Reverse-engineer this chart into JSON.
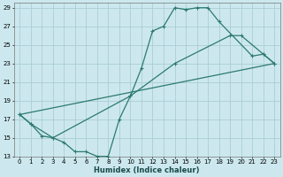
{
  "xlabel": "Humidex (Indice chaleur)",
  "bg_color": "#cce8ee",
  "grid_color": "#aacdd6",
  "line_color": "#2d7a6e",
  "xlim": [
    -0.5,
    23.5
  ],
  "ylim": [
    13,
    29.5
  ],
  "xticks": [
    0,
    1,
    2,
    3,
    4,
    5,
    6,
    7,
    8,
    9,
    10,
    11,
    12,
    13,
    14,
    15,
    16,
    17,
    18,
    19,
    20,
    21,
    22,
    23
  ],
  "yticks": [
    13,
    15,
    17,
    19,
    21,
    23,
    25,
    27,
    29
  ],
  "line1_x": [
    0,
    1,
    2,
    3,
    10,
    11,
    12,
    13,
    14,
    15,
    16,
    17,
    18,
    21,
    22,
    23
  ],
  "line1_y": [
    17.5,
    16.5,
    15.2,
    15.0,
    19.5,
    22.5,
    26.5,
    27.0,
    29.0,
    28.8,
    29.0,
    29.0,
    27.5,
    23.8,
    24.0,
    23.0
  ],
  "line2_x": [
    0,
    23
  ],
  "line2_y": [
    17.5,
    23.0
  ],
  "line3_x": [
    0,
    1,
    3,
    4,
    5,
    6,
    7,
    8,
    9,
    10,
    14,
    19,
    20,
    22,
    23
  ],
  "line3_y": [
    17.5,
    16.5,
    15.0,
    14.5,
    13.5,
    13.5,
    13.0,
    13.0,
    17.0,
    19.5,
    23.0,
    26.0,
    26.0,
    24.0,
    23.0
  ]
}
